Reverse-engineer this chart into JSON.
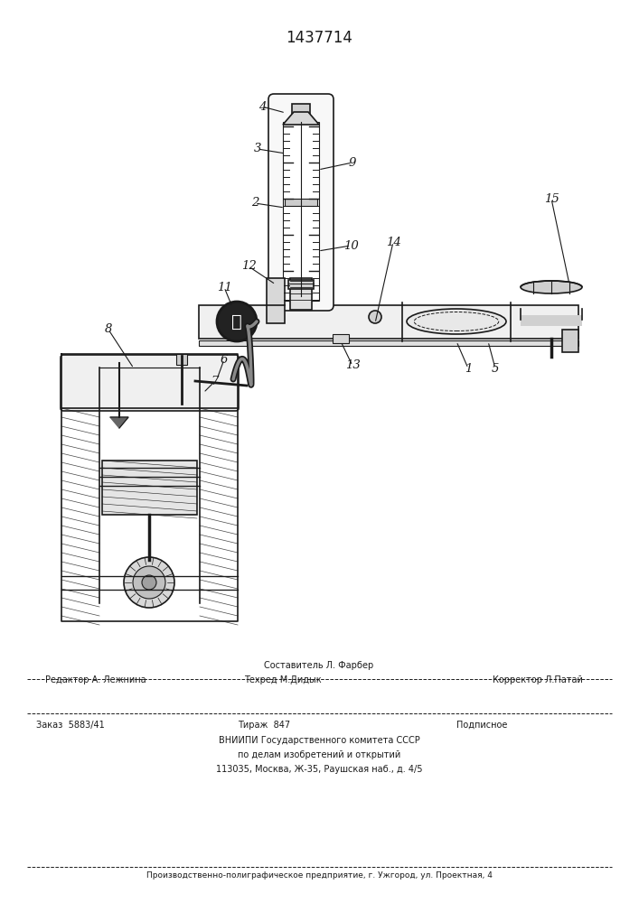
{
  "patent_number": "1437714",
  "bg_color": "#ffffff",
  "text_color": "#1a1a1a",
  "footer_sestavitel": "Составитель Л. Фарбер",
  "footer_redaktor": "Редактор А. Лежнина",
  "footer_tehred": "Техред М.Дидык",
  "footer_korrektor": "Корректор Л.Патай",
  "footer_zakaz": "Заказ  5883/41",
  "footer_tirazh": "Тираж  847",
  "footer_podpisnoe": "Подписное",
  "footer_vniiipi": "ВНИИПИ Государственного комитета СССР",
  "footer_po_delam": "по делам изобретений и открытий",
  "footer_address": "113035, Москва, Ж-35, Раушская наб., д. 4/5",
  "footer_bottom": "Производственно-полиграфическое предприятие, г. Ужгород, ул. Проектная, 4"
}
